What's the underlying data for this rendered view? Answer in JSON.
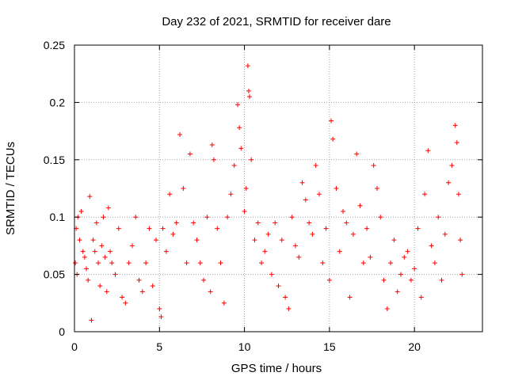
{
  "chart_data": {
    "type": "scatter",
    "title": "Day 232 of 2021, SRMTID for receiver dare",
    "xlabel": "GPS time / hours",
    "ylabel": "SRMTID / TECUs",
    "xlim": [
      0,
      24
    ],
    "ylim": [
      0,
      0.25
    ],
    "xticks": [
      0,
      5,
      10,
      15,
      20
    ],
    "xtick_labels": [
      "0",
      "5",
      "10",
      "15",
      "20"
    ],
    "yticks": [
      0,
      0.05,
      0.1,
      0.15,
      0.2,
      0.25
    ],
    "ytick_labels": [
      "0",
      "0.05",
      "0.1",
      "0.15",
      "0.2",
      "0.25"
    ],
    "grid": true,
    "marker": "plus",
    "marker_color": "#ff0000",
    "series": [
      {
        "name": "SRMTID",
        "points": [
          [
            0.05,
            0.06
          ],
          [
            0.1,
            0.09
          ],
          [
            0.15,
            0.05
          ],
          [
            0.2,
            0.1
          ],
          [
            0.3,
            0.08
          ],
          [
            0.4,
            0.105
          ],
          [
            0.5,
            0.07
          ],
          [
            0.6,
            0.065
          ],
          [
            0.7,
            0.055
          ],
          [
            0.8,
            0.045
          ],
          [
            0.9,
            0.118
          ],
          [
            1.0,
            0.01
          ],
          [
            1.1,
            0.08
          ],
          [
            1.2,
            0.07
          ],
          [
            1.3,
            0.095
          ],
          [
            1.4,
            0.06
          ],
          [
            1.5,
            0.04
          ],
          [
            1.6,
            0.075
          ],
          [
            1.7,
            0.1
          ],
          [
            1.8,
            0.065
          ],
          [
            1.9,
            0.035
          ],
          [
            2.0,
            0.108
          ],
          [
            2.1,
            0.07
          ],
          [
            2.2,
            0.06
          ],
          [
            2.4,
            0.05
          ],
          [
            2.6,
            0.09
          ],
          [
            2.8,
            0.03
          ],
          [
            3.0,
            0.025
          ],
          [
            3.2,
            0.06
          ],
          [
            3.4,
            0.075
          ],
          [
            3.6,
            0.1
          ],
          [
            3.8,
            0.045
          ],
          [
            4.0,
            0.035
          ],
          [
            4.2,
            0.06
          ],
          [
            4.4,
            0.09
          ],
          [
            4.6,
            0.04
          ],
          [
            4.8,
            0.08
          ],
          [
            5.0,
            0.02
          ],
          [
            5.1,
            0.013
          ],
          [
            5.2,
            0.09
          ],
          [
            5.4,
            0.07
          ],
          [
            5.6,
            0.12
          ],
          [
            5.8,
            0.085
          ],
          [
            6.0,
            0.095
          ],
          [
            6.2,
            0.172
          ],
          [
            6.4,
            0.125
          ],
          [
            6.6,
            0.06
          ],
          [
            6.8,
            0.155
          ],
          [
            7.0,
            0.095
          ],
          [
            7.2,
            0.08
          ],
          [
            7.4,
            0.06
          ],
          [
            7.6,
            0.045
          ],
          [
            7.8,
            0.1
          ],
          [
            8.0,
            0.035
          ],
          [
            8.1,
            0.163
          ],
          [
            8.2,
            0.15
          ],
          [
            8.4,
            0.09
          ],
          [
            8.6,
            0.06
          ],
          [
            8.8,
            0.025
          ],
          [
            9.0,
            0.1
          ],
          [
            9.2,
            0.12
          ],
          [
            9.4,
            0.145
          ],
          [
            9.6,
            0.198
          ],
          [
            9.7,
            0.178
          ],
          [
            9.8,
            0.16
          ],
          [
            10.0,
            0.105
          ],
          [
            10.1,
            0.125
          ],
          [
            10.2,
            0.232
          ],
          [
            10.25,
            0.21
          ],
          [
            10.3,
            0.205
          ],
          [
            10.4,
            0.15
          ],
          [
            10.6,
            0.08
          ],
          [
            10.8,
            0.095
          ],
          [
            11.0,
            0.06
          ],
          [
            11.2,
            0.07
          ],
          [
            11.4,
            0.085
          ],
          [
            11.6,
            0.05
          ],
          [
            11.8,
            0.095
          ],
          [
            12.0,
            0.04
          ],
          [
            12.2,
            0.08
          ],
          [
            12.4,
            0.03
          ],
          [
            12.6,
            0.02
          ],
          [
            12.8,
            0.1
          ],
          [
            13.0,
            0.075
          ],
          [
            13.2,
            0.065
          ],
          [
            13.4,
            0.13
          ],
          [
            13.6,
            0.115
          ],
          [
            13.8,
            0.095
          ],
          [
            14.0,
            0.085
          ],
          [
            14.2,
            0.145
          ],
          [
            14.4,
            0.12
          ],
          [
            14.6,
            0.06
          ],
          [
            14.8,
            0.09
          ],
          [
            15.0,
            0.045
          ],
          [
            15.1,
            0.184
          ],
          [
            15.2,
            0.168
          ],
          [
            15.4,
            0.125
          ],
          [
            15.6,
            0.07
          ],
          [
            15.8,
            0.105
          ],
          [
            16.0,
            0.095
          ],
          [
            16.2,
            0.03
          ],
          [
            16.4,
            0.085
          ],
          [
            16.6,
            0.155
          ],
          [
            16.8,
            0.11
          ],
          [
            17.0,
            0.06
          ],
          [
            17.2,
            0.09
          ],
          [
            17.4,
            0.065
          ],
          [
            17.6,
            0.145
          ],
          [
            17.8,
            0.125
          ],
          [
            18.0,
            0.1
          ],
          [
            18.2,
            0.045
          ],
          [
            18.4,
            0.02
          ],
          [
            18.6,
            0.06
          ],
          [
            18.8,
            0.08
          ],
          [
            19.0,
            0.035
          ],
          [
            19.2,
            0.05
          ],
          [
            19.4,
            0.065
          ],
          [
            19.6,
            0.07
          ],
          [
            19.8,
            0.045
          ],
          [
            20.0,
            0.055
          ],
          [
            20.2,
            0.09
          ],
          [
            20.4,
            0.03
          ],
          [
            20.6,
            0.12
          ],
          [
            20.8,
            0.158
          ],
          [
            21.0,
            0.075
          ],
          [
            21.2,
            0.06
          ],
          [
            21.4,
            0.1
          ],
          [
            21.6,
            0.045
          ],
          [
            21.8,
            0.085
          ],
          [
            22.0,
            0.13
          ],
          [
            22.2,
            0.145
          ],
          [
            22.4,
            0.18
          ],
          [
            22.5,
            0.165
          ],
          [
            22.6,
            0.12
          ],
          [
            22.7,
            0.08
          ],
          [
            22.8,
            0.05
          ]
        ]
      }
    ]
  }
}
